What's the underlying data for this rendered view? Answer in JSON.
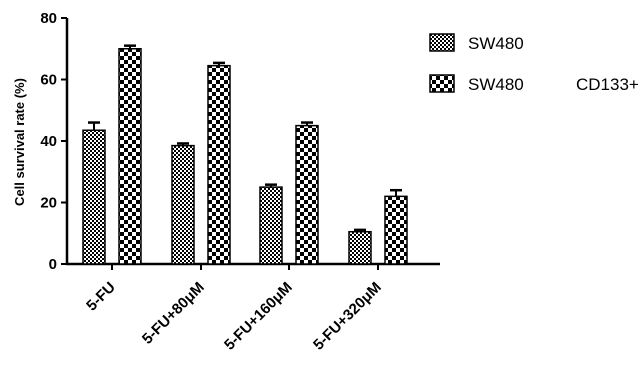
{
  "chart_data": {
    "type": "bar",
    "title": "",
    "xlabel": "",
    "ylabel": "Cell survival rate (%)",
    "ylim": [
      0,
      80
    ],
    "yticks": [
      0,
      20,
      40,
      60,
      80
    ],
    "categories": [
      "5-FU",
      "5-FU+80μM",
      "5-FU+160μM",
      "5-FU+320μM"
    ],
    "series": [
      {
        "name": "SW480",
        "values": [
          43.5,
          38.5,
          25.0,
          10.5
        ],
        "errors": [
          2.5,
          0.7,
          0.8,
          0.6
        ],
        "pattern": "fine-checker"
      },
      {
        "name": "SW480    CD133+",
        "values": [
          70.0,
          64.5,
          45.0,
          22.0
        ],
        "errors": [
          1.0,
          0.9,
          1.0,
          2.0
        ],
        "pattern": "coarse-checker"
      }
    ],
    "grid": false,
    "legend_position": "top-right",
    "colors": {
      "ink": "#000000",
      "fill": "#ffffff"
    }
  }
}
